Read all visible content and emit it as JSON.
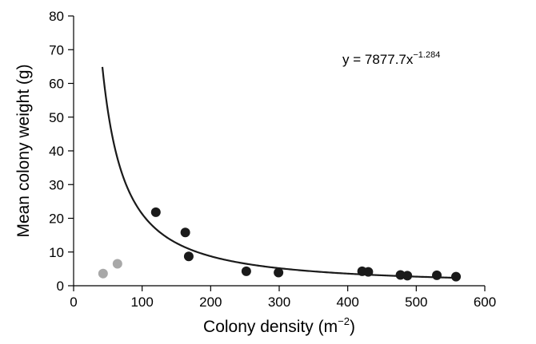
{
  "chart_data": {
    "type": "scatter",
    "title": "",
    "xlabel": "Colony density (m",
    "xlabel_sup": "−2",
    "xlabel_close": ")",
    "ylabel": "Mean colony weight (g)",
    "xlim": [
      0,
      600
    ],
    "ylim": [
      0,
      80
    ],
    "xticks": [
      0,
      100,
      200,
      300,
      400,
      500,
      600
    ],
    "yticks": [
      0,
      10,
      20,
      30,
      40,
      50,
      60,
      70,
      80
    ],
    "grid": false,
    "colors": {
      "black_points": "#1a1a1a",
      "grey_points": "#a8a8a8",
      "curve": "#1a1a1a",
      "axis": "#000000"
    },
    "series": [
      {
        "points": [
          [
            120,
            21.8
          ],
          [
            163,
            15.8
          ],
          [
            168,
            8.7
          ],
          [
            252,
            4.3
          ],
          [
            299,
            3.9
          ],
          [
            421,
            4.3
          ],
          [
            430,
            4.1
          ],
          [
            477,
            3.2
          ],
          [
            487,
            3.0
          ],
          [
            530,
            3.1
          ],
          [
            558,
            2.7
          ]
        ]
      },
      {
        "points": [
          [
            43,
            3.6
          ],
          [
            64,
            6.5
          ]
        ]
      }
    ],
    "fit": {
      "equation_text": "y = 7877.7x",
      "exponent_text": "−1.284",
      "a": 7877.7,
      "b": -1.284,
      "x_range": [
        42,
        560
      ]
    }
  }
}
